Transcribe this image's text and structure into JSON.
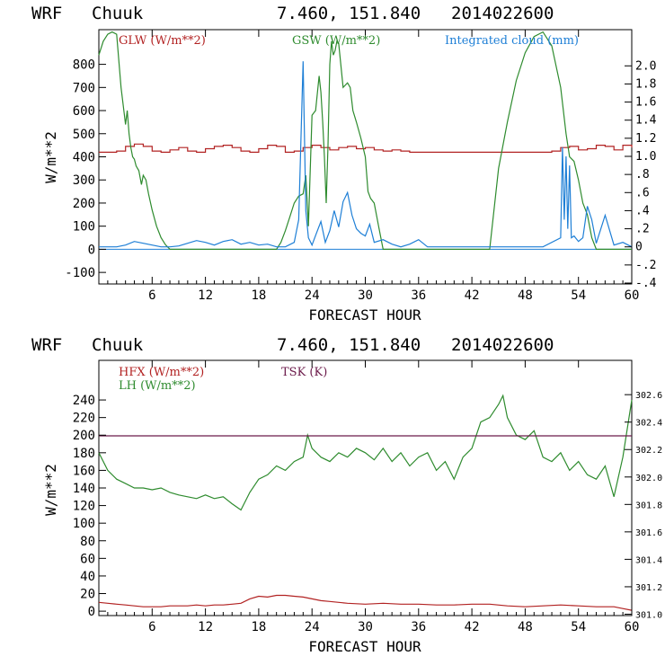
{
  "chart_data": [
    {
      "type": "line",
      "title": {
        "model": "WRF",
        "station": "Chuuk",
        "coords": "7.460, 151.840",
        "date": "2014022600"
      },
      "xlabel": "FORECAST HOUR",
      "ylabel": "W/m**2",
      "xlim": [
        0,
        60
      ],
      "xticks": [
        6,
        12,
        18,
        24,
        30,
        36,
        42,
        48,
        54,
        60
      ],
      "ylim": [
        -150,
        950
      ],
      "yticks": [
        -100,
        0,
        100,
        200,
        300,
        400,
        500,
        600,
        700,
        800
      ],
      "y2lim": [
        -0.41,
        2.4
      ],
      "y2ticks": [
        -0.4,
        -0.2,
        0,
        0.2,
        0.4,
        0.6,
        0.8,
        1.0,
        1.2,
        1.4,
        1.6,
        1.8,
        2.0
      ],
      "y2tick_labels": [
        "-.4",
        "-.2",
        "0",
        ".2",
        ".4",
        ".6",
        ".8",
        "1.0",
        "1.2",
        "1.4",
        "1.6",
        "1.8",
        "2.0"
      ],
      "legend_placement": "top",
      "series": [
        {
          "name": "GLW (W/m**2)",
          "color": "#b22222",
          "axis": "left",
          "step": true,
          "x": [
            0,
            1,
            2,
            3,
            4,
            5,
            6,
            7,
            8,
            9,
            10,
            11,
            12,
            13,
            14,
            15,
            16,
            17,
            18,
            19,
            20,
            21,
            22,
            23,
            24,
            25,
            26,
            27,
            28,
            29,
            30,
            31,
            32,
            33,
            34,
            35,
            36,
            40,
            45,
            48,
            50,
            51,
            52,
            53,
            54,
            55,
            56,
            57,
            58,
            59,
            60
          ],
          "y": [
            420,
            420,
            425,
            445,
            455,
            445,
            425,
            420,
            430,
            440,
            425,
            420,
            435,
            445,
            450,
            440,
            425,
            420,
            435,
            450,
            445,
            420,
            425,
            440,
            450,
            440,
            430,
            440,
            445,
            435,
            440,
            430,
            425,
            430,
            425,
            420,
            420,
            420,
            420,
            420,
            420,
            425,
            440,
            445,
            430,
            435,
            450,
            445,
            430,
            450,
            440
          ]
        },
        {
          "name": "GSW (W/m**2)",
          "color": "#2e8b2e",
          "axis": "left",
          "x": [
            0,
            0.5,
            1,
            1.5,
            2,
            2.5,
            3,
            3.2,
            3.4,
            3.6,
            3.8,
            4,
            4.2,
            4.5,
            4.8,
            5,
            5.3,
            5.6,
            6,
            6.5,
            7,
            7.5,
            8,
            20,
            20.5,
            21,
            21.5,
            22,
            22.5,
            23,
            23.3,
            23.6,
            24,
            24.4,
            24.8,
            25,
            25.2,
            25.4,
            25.6,
            25.8,
            26,
            26.2,
            26.4,
            26.6,
            26.8,
            27,
            27.5,
            28,
            28.3,
            28.6,
            29,
            29.5,
            30,
            30.3,
            30.6,
            31,
            31.5,
            32,
            44,
            45,
            46,
            47,
            48,
            49,
            50,
            51,
            52,
            52.3,
            52.6,
            53,
            53.5,
            54,
            54.5,
            55,
            55.5,
            56,
            60
          ],
          "y": [
            840,
            900,
            930,
            940,
            930,
            700,
            540,
            600,
            500,
            440,
            400,
            390,
            360,
            340,
            280,
            320,
            300,
            240,
            170,
            100,
            50,
            20,
            0,
            0,
            30,
            80,
            140,
            200,
            230,
            240,
            320,
            100,
            580,
            600,
            750,
            680,
            550,
            400,
            200,
            450,
            800,
            900,
            840,
            860,
            900,
            890,
            700,
            720,
            700,
            600,
            550,
            480,
            400,
            250,
            220,
            200,
            100,
            0,
            0,
            350,
            550,
            730,
            850,
            920,
            940,
            880,
            700,
            600,
            500,
            400,
            380,
            300,
            200,
            150,
            50,
            0,
            0
          ]
        },
        {
          "name": "Integrated cloud (mm)",
          "color": "#1e7fd6",
          "axis": "right",
          "x": [
            0,
            1,
            2,
            3,
            4,
            5,
            6,
            7,
            8,
            9,
            10,
            11,
            12,
            13,
            14,
            15,
            16,
            17,
            18,
            19,
            20,
            21,
            22,
            22.5,
            23,
            23.3,
            23.6,
            24,
            24.5,
            25,
            25.5,
            26,
            26.5,
            27,
            27.5,
            28,
            28.5,
            29,
            29.5,
            30,
            30.5,
            31,
            32,
            33,
            34,
            35,
            36,
            37,
            40,
            45,
            50,
            52,
            52.2,
            52.4,
            52.6,
            52.8,
            53,
            53.2,
            53.5,
            54,
            54.5,
            55,
            55.5,
            56,
            57,
            58,
            59,
            60
          ],
          "y": [
            0,
            0,
            0,
            0.02,
            0.06,
            0.04,
            0.02,
            0,
            0,
            0.01,
            0.04,
            0.07,
            0.05,
            0.02,
            0.06,
            0.08,
            0.03,
            0.05,
            0.02,
            0.03,
            0,
            0,
            0.05,
            0.3,
            2.05,
            0.4,
            0.1,
            0.02,
            0.15,
            0.28,
            0.05,
            0.18,
            0.4,
            0.22,
            0.5,
            0.6,
            0.35,
            0.2,
            0.15,
            0.12,
            0.25,
            0.05,
            0.08,
            0.03,
            0,
            0.03,
            0.08,
            0,
            0,
            0,
            0,
            0.1,
            1.1,
            0.3,
            1.0,
            0.2,
            0.9,
            0.1,
            0.12,
            0.06,
            0.1,
            0.45,
            0.3,
            0.04,
            0.35,
            0.02,
            0.05,
            0
          ]
        }
      ]
    },
    {
      "type": "line",
      "title": {
        "model": "WRF",
        "station": "Chuuk",
        "coords": "7.460, 151.840",
        "date": "2014022600"
      },
      "xlabel": "FORECAST HOUR",
      "ylabel": "W/m**2",
      "xlim": [
        0,
        60
      ],
      "xticks": [
        6,
        12,
        18,
        24,
        30,
        36,
        42,
        48,
        54,
        60
      ],
      "ylim": [
        -5,
        285
      ],
      "yticks": [
        0,
        20,
        40,
        60,
        80,
        100,
        120,
        140,
        160,
        180,
        200,
        220,
        240
      ],
      "y2lim": [
        300.99,
        302.85
      ],
      "y2ticks": [
        301.0,
        301.2,
        301.4,
        301.6,
        301.8,
        302.0,
        302.2,
        302.4,
        302.6
      ],
      "y2tick_labels": [
        "301.0",
        "301.2",
        "301.4",
        "301.6",
        "301.8",
        "302.0",
        "302.2",
        "302.4",
        "302.6"
      ],
      "legend_placement": "top-left",
      "series": [
        {
          "name": "HFX (W/m**2)",
          "color": "#b22222",
          "axis": "left",
          "x": [
            0,
            1,
            2,
            3,
            4,
            5,
            6,
            7,
            8,
            9,
            10,
            11,
            12,
            13,
            14,
            15,
            16,
            17,
            18,
            19,
            20,
            21,
            22,
            23,
            24,
            25,
            26,
            27,
            28,
            30,
            32,
            34,
            36,
            38,
            40,
            42,
            44,
            46,
            48,
            50,
            52,
            54,
            56,
            58,
            59,
            60
          ],
          "y": [
            10,
            9,
            8,
            7,
            6,
            5,
            5,
            5,
            6,
            6,
            6,
            7,
            6,
            7,
            7,
            8,
            9,
            14,
            17,
            16,
            18,
            18,
            17,
            16,
            14,
            12,
            11,
            10,
            9,
            8,
            9,
            8,
            8,
            7,
            7,
            8,
            8,
            6,
            5,
            6,
            7,
            6,
            5,
            5,
            3,
            1
          ]
        },
        {
          "name": "LH (W/m**2)",
          "color": "#2e8b2e",
          "axis": "left",
          "x": [
            0,
            1,
            2,
            3,
            4,
            5,
            6,
            7,
            8,
            9,
            10,
            11,
            12,
            13,
            14,
            15,
            16,
            17,
            18,
            19,
            20,
            21,
            22,
            23,
            23.5,
            24,
            25,
            26,
            27,
            28,
            29,
            30,
            31,
            32,
            33,
            34,
            35,
            36,
            37,
            38,
            39,
            40,
            41,
            42,
            43,
            44,
            45,
            45.5,
            46,
            47,
            48,
            49,
            50,
            51,
            52,
            53,
            54,
            55,
            56,
            57,
            58,
            59,
            60
          ],
          "y": [
            180,
            160,
            150,
            145,
            140,
            140,
            138,
            140,
            135,
            132,
            130,
            128,
            132,
            128,
            130,
            122,
            115,
            135,
            150,
            155,
            165,
            160,
            170,
            175,
            200,
            185,
            175,
            170,
            180,
            175,
            185,
            180,
            172,
            185,
            170,
            180,
            165,
            175,
            180,
            160,
            170,
            150,
            175,
            185,
            215,
            220,
            235,
            245,
            220,
            200,
            195,
            205,
            175,
            170,
            180,
            160,
            170,
            155,
            150,
            165,
            130,
            175,
            240
          ]
        },
        {
          "name": "TSK (K)",
          "color": "#6b1a4a",
          "axis": "right",
          "x": [
            0,
            60
          ],
          "y": [
            302.3,
            302.3
          ]
        }
      ]
    }
  ]
}
